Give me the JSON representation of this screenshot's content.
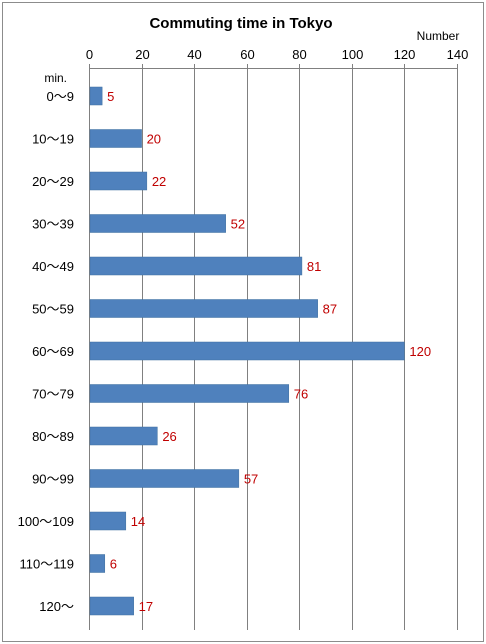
{
  "chart_data": {
    "type": "bar",
    "orientation": "horizontal",
    "title": "Commuting time in Tokyo",
    "xlabel": "Number",
    "ylabel": "min.",
    "xlim": [
      0,
      140
    ],
    "xticks": [
      0,
      20,
      40,
      60,
      80,
      100,
      120,
      140
    ],
    "x_axis_position": "top",
    "grid": "vertical",
    "categories": [
      "0～9",
      "10～19",
      "20～29",
      "30～39",
      "40～49",
      "50～59",
      "60～69",
      "70～79",
      "80～89",
      "90～99",
      "100～109",
      "110～119",
      "120～"
    ],
    "values": [
      5,
      20,
      22,
      52,
      81,
      87,
      120,
      76,
      26,
      57,
      14,
      6,
      17
    ],
    "bar_color": "#4f81bd",
    "label_color": "#c00000"
  }
}
